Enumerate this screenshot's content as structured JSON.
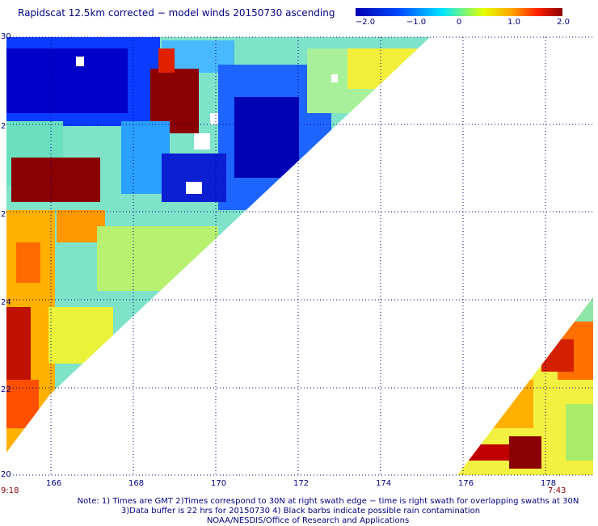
{
  "title": "Rapidscat 12.5km corrected − model winds 20150730 ascending",
  "colorbar": {
    "labels": [
      "−2.0",
      "−1.0",
      "0",
      "1.0",
      "2.0"
    ],
    "values": [
      -2.0,
      -1.0,
      0,
      1.0,
      2.0
    ],
    "colors": [
      "#0000b4",
      "#0050ff",
      "#00e6ff",
      "#e6ff00",
      "#ffa000",
      "#ff2000",
      "#8b0000"
    ]
  },
  "map": {
    "lon_ticks": [
      "166",
      "168",
      "170",
      "172",
      "174",
      "176",
      "178"
    ],
    "lat_ticks": [
      "30",
      "2",
      "2",
      "24",
      "22",
      "20"
    ],
    "start_time": "9:18",
    "end_time": "7:43"
  },
  "notes": {
    "line1": "Note: 1) Times are GMT 2)Times correspond to 30N at right swath edge − time is right swath for overlapping swaths at 30N",
    "line2": "3)Data buffer is 22 hrs for 20150730 4) Black barbs indicate possible rain contamination",
    "credit": "NOAA/NESDIS/Office of Research and Applications"
  }
}
